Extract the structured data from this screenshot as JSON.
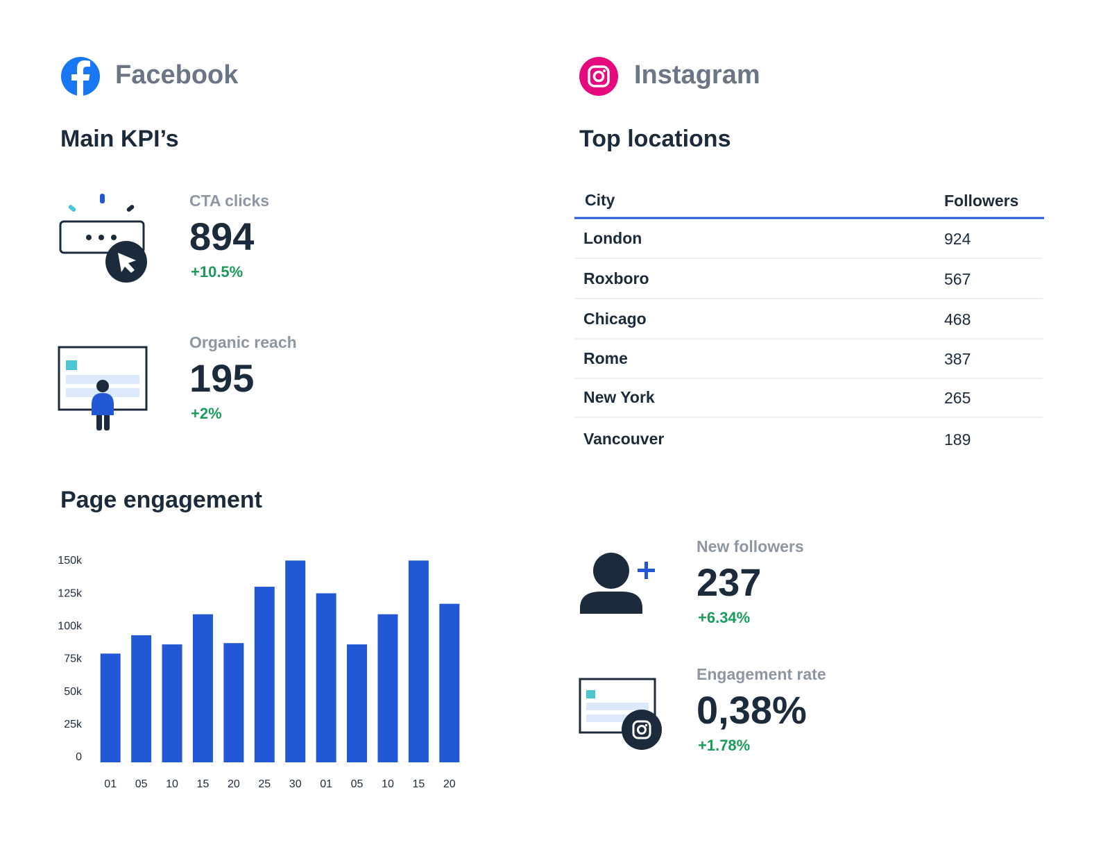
{
  "facebook": {
    "title": "Facebook",
    "kpi_heading": "Main KPI’s",
    "kpis": [
      {
        "label": "CTA clicks",
        "value": 894,
        "change": "+10.5%"
      },
      {
        "label": "Organic reach",
        "value": 195,
        "change": "+2%"
      }
    ]
  },
  "chart_data": {
    "type": "bar",
    "title": "Page engagement",
    "categories": [
      "01",
      "05",
      "10",
      "15",
      "20",
      "25",
      "30",
      "01",
      "05",
      "10",
      "15",
      "20"
    ],
    "values": [
      83000,
      97000,
      90000,
      113000,
      91000,
      134000,
      154000,
      129000,
      90000,
      113000,
      154000,
      121000
    ],
    "color": "#2258d6",
    "ylim": [
      0,
      160000
    ],
    "yticks": [
      0,
      {
        "value": 25000,
        "label": "25k"
      },
      {
        "value": 50000,
        "label": "50k"
      },
      {
        "value": 75000,
        "label": "75k"
      },
      {
        "value": 100000,
        "label": "100k"
      },
      {
        "value": 125000,
        "label": "125k"
      },
      {
        "value": 150000,
        "label": "150k"
      }
    ],
    "grid": false
  },
  "instagram": {
    "title": "Instagram",
    "locations_heading": "Top locations",
    "table": {
      "columns": [
        "City",
        "Followers"
      ],
      "rows": [
        [
          "London",
          924
        ],
        [
          "Roxboro",
          567
        ],
        [
          "Chicago",
          468
        ],
        [
          "Rome",
          387
        ],
        [
          "New York",
          265
        ],
        [
          "Vancouver",
          189
        ]
      ]
    },
    "kpis": [
      {
        "label": "New followers",
        "value": 237,
        "change": "+6.34%"
      },
      {
        "label": "Engagement rate",
        "value": "0,38%",
        "change": "+1.78%"
      }
    ]
  }
}
